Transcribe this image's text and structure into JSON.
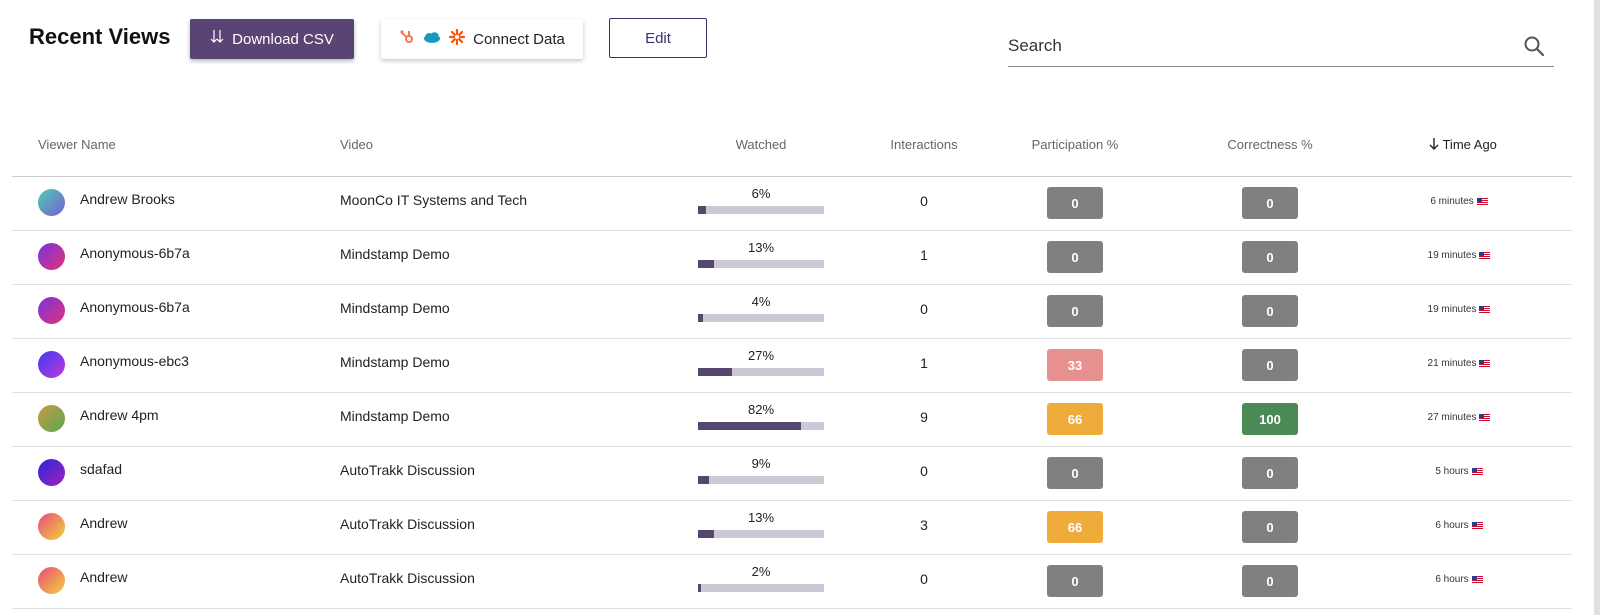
{
  "header": {
    "title": "Recent Views",
    "download_label": "Download CSV",
    "connect_label": "Connect Data",
    "edit_label": "Edit",
    "search_placeholder": "Search"
  },
  "colors": {
    "primary": "#5a4474",
    "badge_gray": "#808080",
    "badge_red": "#e79090",
    "badge_orange": "#f0ac3b",
    "badge_green": "#4b8a57",
    "progress_fill": "#56476f",
    "progress_track": "#cdc8d6"
  },
  "columns": {
    "viewer": "Viewer Name",
    "video": "Video",
    "watched": "Watched",
    "interactions": "Interactions",
    "participation": "Participation %",
    "correctness": "Correctness %",
    "time_ago": "Time Ago"
  },
  "rows": [
    {
      "name": "Andrew Brooks",
      "video": "MoonCo IT Systems and Tech",
      "watched": "6%",
      "watched_fraction": 0.06,
      "interactions": "0",
      "participation": "0",
      "participation_color": "#808080",
      "correctness": "0",
      "correctness_color": "#808080",
      "time": "6 minutes",
      "avatar_gradient": [
        "#4bd0b0",
        "#7a5bd6"
      ]
    },
    {
      "name": "Anonymous-6b7a",
      "video": "Mindstamp Demo",
      "watched": "13%",
      "watched_fraction": 0.13,
      "interactions": "1",
      "participation": "0",
      "participation_color": "#808080",
      "correctness": "0",
      "correctness_color": "#808080",
      "time": "19 minutes",
      "avatar_gradient": [
        "#7a34e0",
        "#e0307a"
      ]
    },
    {
      "name": "Anonymous-6b7a",
      "video": "Mindstamp Demo",
      "watched": "4%",
      "watched_fraction": 0.04,
      "interactions": "0",
      "participation": "0",
      "participation_color": "#808080",
      "correctness": "0",
      "correctness_color": "#808080",
      "time": "19 minutes",
      "avatar_gradient": [
        "#7a34e0",
        "#e0307a"
      ]
    },
    {
      "name": "Anonymous-ebc3",
      "video": "Mindstamp Demo",
      "watched": "27%",
      "watched_fraction": 0.27,
      "interactions": "1",
      "participation": "33",
      "participation_color": "#e79090",
      "correctness": "0",
      "correctness_color": "#808080",
      "time": "21 minutes",
      "avatar_gradient": [
        "#3c3cf0",
        "#c038e0"
      ]
    },
    {
      "name": "Andrew 4pm",
      "video": "Mindstamp Demo",
      "watched": "82%",
      "watched_fraction": 0.82,
      "interactions": "9",
      "participation": "66",
      "participation_color": "#f0ac3b",
      "correctness": "100",
      "correctness_color": "#4b8a57",
      "time": "27 minutes",
      "avatar_gradient": [
        "#c89a3c",
        "#5aa85a"
      ]
    },
    {
      "name": "sdafad",
      "video": "AutoTrakk Discussion",
      "watched": "9%",
      "watched_fraction": 0.09,
      "interactions": "0",
      "participation": "0",
      "participation_color": "#808080",
      "correctness": "0",
      "correctness_color": "#808080",
      "time": "5 hours",
      "avatar_gradient": [
        "#2a2ad8",
        "#a020c0"
      ]
    },
    {
      "name": "Andrew",
      "video": "AutoTrakk Discussion",
      "watched": "13%",
      "watched_fraction": 0.13,
      "interactions": "3",
      "participation": "66",
      "participation_color": "#f0ac3b",
      "correctness": "0",
      "correctness_color": "#808080",
      "time": "6 hours",
      "avatar_gradient": [
        "#e84a7a",
        "#f2d23c"
      ]
    },
    {
      "name": "Andrew",
      "video": "AutoTrakk Discussion",
      "watched": "2%",
      "watched_fraction": 0.02,
      "interactions": "0",
      "participation": "0",
      "participation_color": "#808080",
      "correctness": "0",
      "correctness_color": "#808080",
      "time": "6 hours",
      "avatar_gradient": [
        "#e84a7a",
        "#f2d23c"
      ]
    }
  ]
}
